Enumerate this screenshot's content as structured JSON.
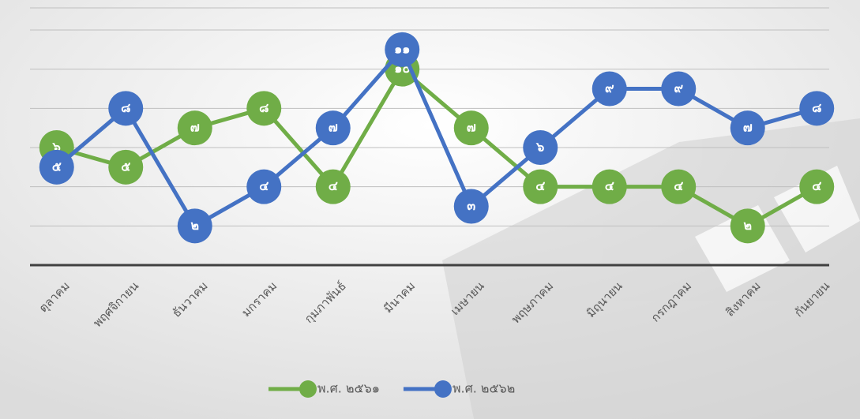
{
  "chart_data": {
    "type": "line",
    "categories": [
      "ตุลาคม",
      "พฤศจิกายน",
      "ธันวาคม",
      "มกราคม",
      "กุมภาพันธ์",
      "มีนาคม",
      "เมษายน",
      "พฤษภาคม",
      "มิถุนายน",
      "กรกฎาคม",
      "สิงหาคม",
      "กันยายน"
    ],
    "series": [
      {
        "name": "พ.ศ. ๒๕๖๑",
        "color": "#70ad47",
        "values": [
          6,
          5,
          7,
          8,
          4,
          10,
          7,
          4,
          4,
          4,
          2,
          4
        ],
        "value_labels": [
          "๖",
          "๕",
          "๗",
          "๘",
          "๔",
          "๑๐",
          "๗",
          "๔",
          "๔",
          "๔",
          "๒",
          "๔"
        ]
      },
      {
        "name": "พ.ศ. ๒๕๖๒",
        "color": "#4472c4",
        "values": [
          5,
          8,
          2,
          4,
          7,
          11,
          3,
          6,
          9,
          9,
          7,
          8
        ],
        "value_labels": [
          "๕",
          "๘",
          "๒",
          "๔",
          "๗",
          "๑๑",
          "๓",
          "๖",
          "๙",
          "๙",
          "๗",
          "๘"
        ]
      }
    ],
    "ylim": [
      0,
      12
    ],
    "yticks": [
      0,
      2,
      4,
      6,
      8,
      10,
      12
    ],
    "grid": true,
    "legend": "bottom"
  }
}
